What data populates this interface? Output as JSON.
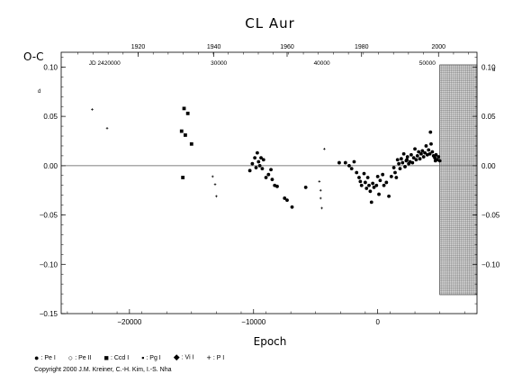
{
  "chart_data": {
    "type": "scatter",
    "title": "CL Aur",
    "ylabel": "O-C",
    "xlabel": "Epoch",
    "y_unit_left": "d",
    "y_unit_right": "d",
    "xlim": [
      -25500,
      8000
    ],
    "ylim": [
      -0.15,
      0.115
    ],
    "x_ticks": [
      -20000,
      -10000,
      0
    ],
    "x_tick_labels": [
      "−20000",
      "−10000",
      "0"
    ],
    "y_ticks_left": [
      0.1,
      0.05,
      0.0,
      -0.05,
      -0.1,
      -0.15
    ],
    "y_tick_labels_left": [
      "0.10",
      "0.05",
      "0.00",
      "−0.05",
      "−0.10",
      "−0.15"
    ],
    "y_ticks_right": [
      0.1,
      0.05,
      0.0,
      -0.05,
      -0.1
    ],
    "y_tick_labels_right": [
      "0.10",
      "0.05",
      "0.00",
      "−0.05",
      "−0.10"
    ],
    "top_year_ticks": [
      1920,
      1940,
      1960,
      1980,
      2000
    ],
    "top_year_epochs": [
      -19300,
      -13200,
      -7300,
      -1300,
      4900
    ],
    "jd_labels": [
      "JD 2420000",
      "30000",
      "40000",
      "50000"
    ],
    "jd_label_epochs": [
      -22000,
      -12800,
      -4500,
      4000
    ],
    "zero_line": 0.0,
    "prediction_band": [
      5000,
      8000
    ],
    "legend": [
      "Pe I",
      "Pe II",
      "Ccd I",
      "Pg I",
      "Vi I",
      "P I"
    ],
    "series": [
      {
        "name": "P I",
        "marker": "plus",
        "points": [
          [
            -23000,
            0.057
          ],
          [
            -21800,
            0.038
          ],
          [
            -13300,
            -0.011
          ],
          [
            -13100,
            -0.019
          ],
          [
            -13000,
            -0.031
          ],
          [
            -4700,
            -0.016
          ],
          [
            -4600,
            -0.025
          ],
          [
            -4600,
            -0.033
          ],
          [
            -4500,
            -0.043
          ],
          [
            -4300,
            0.017
          ]
        ]
      },
      {
        "name": "Ccd I",
        "marker": "square",
        "points": [
          [
            -15800,
            0.035
          ],
          [
            -15700,
            -0.012
          ],
          [
            -15600,
            0.058
          ],
          [
            -15500,
            0.031
          ],
          [
            -15300,
            0.053
          ],
          [
            -15000,
            0.022
          ]
        ]
      },
      {
        "name": "Pe I",
        "marker": "circle",
        "points": [
          [
            -10300,
            -0.005
          ],
          [
            -10100,
            0.002
          ],
          [
            -9900,
            0.008
          ],
          [
            -9800,
            -0.002
          ],
          [
            -9700,
            0.013
          ],
          [
            -9600,
            0.004
          ],
          [
            -9500,
            0.0
          ],
          [
            -9400,
            0.008
          ],
          [
            -9300,
            -0.003
          ],
          [
            -9200,
            0.006
          ],
          [
            -9000,
            -0.012
          ],
          [
            -8800,
            -0.009
          ],
          [
            -8600,
            -0.004
          ],
          [
            -8500,
            -0.014
          ],
          [
            -8300,
            -0.02
          ],
          [
            -8100,
            -0.021
          ],
          [
            -7500,
            -0.033
          ],
          [
            -7300,
            -0.035
          ],
          [
            -6900,
            -0.042
          ],
          [
            -5800,
            -0.022
          ],
          [
            -3100,
            0.003
          ],
          [
            -2600,
            0.003
          ],
          [
            -2300,
            0.0
          ],
          [
            -2100,
            -0.003
          ],
          [
            -1900,
            0.004
          ],
          [
            -1700,
            -0.007
          ],
          [
            -1500,
            -0.012
          ],
          [
            -1400,
            -0.016
          ],
          [
            -1300,
            -0.02
          ],
          [
            -1100,
            -0.008
          ],
          [
            -1000,
            -0.017
          ],
          [
            -900,
            -0.023
          ],
          [
            -800,
            -0.012
          ],
          [
            -700,
            -0.02
          ],
          [
            -600,
            -0.026
          ],
          [
            -500,
            -0.037
          ],
          [
            -400,
            -0.018
          ],
          [
            -300,
            -0.022
          ],
          [
            -100,
            -0.02
          ],
          [
            0,
            -0.011
          ],
          [
            100,
            -0.029
          ],
          [
            200,
            -0.015
          ],
          [
            400,
            -0.009
          ],
          [
            500,
            -0.02
          ],
          [
            700,
            -0.017
          ],
          [
            900,
            -0.031
          ],
          [
            1100,
            -0.011
          ],
          [
            1300,
            -0.002
          ],
          [
            1400,
            -0.007
          ],
          [
            1500,
            -0.012
          ],
          [
            1600,
            0.006
          ],
          [
            1700,
            0.002
          ],
          [
            1800,
            -0.003
          ],
          [
            1900,
            0.007
          ],
          [
            2000,
            0.003
          ],
          [
            2100,
            0.012
          ],
          [
            2200,
            -0.001
          ],
          [
            2300,
            0.005
          ],
          [
            2400,
            0.009
          ],
          [
            2500,
            0.002
          ],
          [
            2600,
            0.004
          ],
          [
            2700,
            0.011
          ],
          [
            2800,
            0.003
          ],
          [
            2900,
            0.008
          ],
          [
            3000,
            0.017
          ],
          [
            3100,
            0.006
          ],
          [
            3200,
            0.01
          ],
          [
            3300,
            0.014
          ],
          [
            3400,
            0.007
          ],
          [
            3500,
            0.012
          ],
          [
            3600,
            0.015
          ],
          [
            3700,
            0.009
          ],
          [
            3800,
            0.013
          ],
          [
            3900,
            0.02
          ],
          [
            4000,
            0.011
          ],
          [
            4100,
            0.016
          ],
          [
            4200,
            0.012
          ],
          [
            4300,
            0.022
          ],
          [
            4400,
            0.014
          ],
          [
            4500,
            0.01
          ],
          [
            4600,
            0.008
          ],
          [
            4700,
            0.011
          ],
          [
            4800,
            0.006
          ],
          [
            4900,
            0.009
          ],
          [
            5000,
            0.005
          ],
          [
            4250,
            0.034
          ],
          [
            2350,
            0.006
          ],
          [
            4650,
            0.005
          ]
        ]
      }
    ]
  },
  "copyright": "Copyright 2000 J.M. Kreiner, C.-H. Kim, I.-S. Nha"
}
